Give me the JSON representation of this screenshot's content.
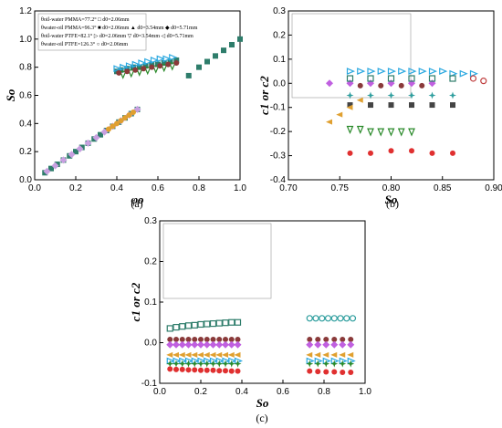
{
  "chart_data": [
    {
      "panel": "(a)",
      "type": "scatter",
      "xlabel": "φo",
      "ylabel": "So",
      "xlim": [
        0.0,
        1.0
      ],
      "ylim": [
        0.0,
        1.2
      ],
      "xticks": [
        "0.0",
        "0.2",
        "0.4",
        "0.6",
        "0.8",
        "1.0"
      ],
      "yticks": [
        "0.0",
        "0.2",
        "0.4",
        "0.6",
        "0.8",
        "1.0",
        "1.2"
      ],
      "legend": [
        "θoil-water PMMA=77.2°  □ d0=2.06mm",
        "θwater-oil PMMA=96.3°  ■ d0=2.06mm  ▲ d0=3.54mm  ◆ d0=5.71mm",
        "θoil-water PTFE=82.1°  ▷ d0=2.06mm  ▽ d0=3.54mm  ◁ d0=5.71mm",
        "θwater-oil PTFE=126.3° ○ d0=2.06mm"
      ],
      "series": [
        {
          "color": "#2e7d6b",
          "marker": "square",
          "x": [
            0.05,
            0.08,
            0.11,
            0.14,
            0.17,
            0.2,
            0.23,
            0.26,
            0.29,
            0.32,
            0.35,
            0.38,
            0.41,
            0.44,
            0.47,
            0.5
          ],
          "y": [
            0.05,
            0.08,
            0.11,
            0.14,
            0.17,
            0.2,
            0.23,
            0.26,
            0.29,
            0.32,
            0.35,
            0.38,
            0.41,
            0.44,
            0.47,
            0.5
          ]
        },
        {
          "color": "#c8a0e0",
          "marker": "diamond",
          "x": [
            0.06,
            0.1,
            0.14,
            0.18,
            0.22,
            0.26,
            0.3,
            0.34,
            0.38,
            0.42,
            0.46,
            0.5
          ],
          "y": [
            0.06,
            0.1,
            0.14,
            0.18,
            0.22,
            0.26,
            0.3,
            0.34,
            0.38,
            0.42,
            0.46,
            0.5
          ]
        },
        {
          "color": "#e0a030",
          "marker": "circle",
          "x": [
            0.36,
            0.38,
            0.4,
            0.42,
            0.44,
            0.46,
            0.48
          ],
          "y": [
            0.36,
            0.38,
            0.4,
            0.42,
            0.44,
            0.46,
            0.48
          ]
        },
        {
          "color": "#2e7d6b",
          "marker": "square",
          "x": [
            0.4,
            0.42,
            0.45,
            0.48,
            0.51,
            0.54,
            0.57,
            0.6,
            0.63,
            0.66,
            0.69
          ],
          "y": [
            0.77,
            0.78,
            0.79,
            0.8,
            0.8,
            0.81,
            0.82,
            0.82,
            0.83,
            0.84,
            0.85
          ]
        },
        {
          "color": "#2aa8e0",
          "marker": "tri-right",
          "x": [
            0.4,
            0.43,
            0.46,
            0.49,
            0.52,
            0.55,
            0.58,
            0.61,
            0.64,
            0.67
          ],
          "y": [
            0.79,
            0.8,
            0.81,
            0.82,
            0.83,
            0.84,
            0.85,
            0.86,
            0.86,
            0.87
          ]
        },
        {
          "color": "#2a8a2a",
          "marker": "tri-down",
          "x": [
            0.43,
            0.47,
            0.51,
            0.55,
            0.59,
            0.63,
            0.67
          ],
          "y": [
            0.75,
            0.76,
            0.77,
            0.78,
            0.79,
            0.8,
            0.81
          ]
        },
        {
          "color": "#8a3a3a",
          "marker": "circle",
          "x": [
            0.41,
            0.45,
            0.49,
            0.53,
            0.57,
            0.61,
            0.65,
            0.69
          ],
          "y": [
            0.76,
            0.77,
            0.78,
            0.79,
            0.8,
            0.81,
            0.82,
            0.83
          ]
        },
        {
          "color": "#2e7d6b",
          "marker": "square",
          "x": [
            0.75,
            0.8,
            0.84,
            0.88,
            0.92,
            0.96,
            1.0
          ],
          "y": [
            0.74,
            0.8,
            0.84,
            0.88,
            0.92,
            0.96,
            1.0
          ]
        }
      ]
    },
    {
      "panel": "(b)",
      "type": "scatter",
      "xlabel": "So",
      "ylabel": "c1 or c2",
      "xlim": [
        0.7,
        0.9
      ],
      "ylim": [
        -0.4,
        0.3
      ],
      "xticks": [
        "0.70",
        "0.75",
        "0.80",
        "0.85",
        "0.90"
      ],
      "yticks": [
        "-0.4",
        "-0.3",
        "-0.2",
        "-0.1",
        "0.0",
        "0.1",
        "0.2",
        "0.3"
      ],
      "series": [
        {
          "color": "#2aa8e0",
          "marker": "tri-right",
          "x": [
            0.76,
            0.77,
            0.78,
            0.79,
            0.8,
            0.81,
            0.82,
            0.83,
            0.84,
            0.85,
            0.86,
            0.87,
            0.88
          ],
          "y": [
            0.05,
            0.05,
            0.05,
            0.05,
            0.05,
            0.05,
            0.05,
            0.05,
            0.05,
            0.05,
            0.04,
            0.04,
            0.04
          ]
        },
        {
          "color": "#c060e0",
          "marker": "diamond",
          "x": [
            0.74,
            0.76,
            0.78,
            0.8,
            0.82,
            0.84
          ],
          "y": [
            0.0,
            0.0,
            0.0,
            0.0,
            0.0,
            0.0
          ]
        },
        {
          "color": "#2e7d6b",
          "marker": "square-open",
          "x": [
            0.76,
            0.78,
            0.8,
            0.82,
            0.84,
            0.86
          ],
          "y": [
            0.02,
            0.02,
            0.02,
            0.02,
            0.02,
            0.02
          ]
        },
        {
          "color": "#c04040",
          "marker": "circle-open",
          "x": [
            0.88,
            0.89
          ],
          "y": [
            0.02,
            0.01
          ]
        },
        {
          "color": "#444444",
          "marker": "square",
          "x": [
            0.76,
            0.78,
            0.8,
            0.82,
            0.84,
            0.86
          ],
          "y": [
            -0.09,
            -0.09,
            -0.09,
            -0.09,
            -0.09,
            -0.09
          ]
        },
        {
          "color": "#2e9e9e",
          "marker": "star",
          "x": [
            0.76,
            0.78,
            0.8,
            0.82,
            0.84,
            0.86
          ],
          "y": [
            -0.05,
            -0.05,
            -0.05,
            -0.05,
            -0.05,
            -0.05
          ]
        },
        {
          "color": "#e0a030",
          "marker": "tri-left",
          "x": [
            0.74,
            0.75,
            0.76,
            0.77
          ],
          "y": [
            -0.16,
            -0.13,
            -0.1,
            -0.07
          ]
        },
        {
          "color": "#2a8a2a",
          "marker": "tri-down",
          "x": [
            0.76,
            0.77,
            0.78,
            0.79,
            0.8,
            0.81,
            0.82
          ],
          "y": [
            -0.19,
            -0.19,
            -0.2,
            -0.2,
            -0.2,
            -0.2,
            -0.2
          ]
        },
        {
          "color": "#e03030",
          "marker": "circle",
          "x": [
            0.76,
            0.78,
            0.8,
            0.82,
            0.84,
            0.86
          ],
          "y": [
            -0.29,
            -0.29,
            -0.28,
            -0.28,
            -0.29,
            -0.29
          ]
        },
        {
          "color": "#8a3a3a",
          "marker": "circle",
          "x": [
            0.77,
            0.79,
            0.81,
            0.83
          ],
          "y": [
            -0.01,
            -0.01,
            -0.01,
            -0.01
          ]
        }
      ]
    },
    {
      "panel": "(c)",
      "type": "scatter",
      "xlabel": "So",
      "ylabel": "c1 or c2",
      "xlim": [
        0.0,
        1.0
      ],
      "ylim": [
        -0.1,
        0.3
      ],
      "xticks": [
        "0.0",
        "0.2",
        "0.4",
        "0.6",
        "0.8",
        "1.0"
      ],
      "yticks": [
        "-0.1",
        "0.0",
        "0.1",
        "0.2",
        "0.3"
      ],
      "series": [
        {
          "color": "#2e7d6b",
          "marker": "square-open",
          "x": [
            0.05,
            0.08,
            0.11,
            0.14,
            0.17,
            0.2,
            0.23,
            0.26,
            0.29,
            0.32,
            0.35,
            0.38
          ],
          "y": [
            0.035,
            0.038,
            0.04,
            0.042,
            0.043,
            0.045,
            0.046,
            0.047,
            0.048,
            0.049,
            0.05,
            0.05
          ]
        },
        {
          "color": "#2e9e9e",
          "marker": "circle-open",
          "x": [
            0.73,
            0.76,
            0.79,
            0.82,
            0.85,
            0.88,
            0.91,
            0.94
          ],
          "y": [
            0.06,
            0.06,
            0.06,
            0.06,
            0.06,
            0.06,
            0.06,
            0.06
          ]
        },
        {
          "color": "#8a3a3a",
          "marker": "circle",
          "x": [
            0.05,
            0.08,
            0.11,
            0.14,
            0.17,
            0.2,
            0.23,
            0.26,
            0.29,
            0.32,
            0.35,
            0.38,
            0.73,
            0.77,
            0.81,
            0.85,
            0.89,
            0.93
          ],
          "y": [
            0.008,
            0.008,
            0.008,
            0.008,
            0.008,
            0.008,
            0.008,
            0.008,
            0.008,
            0.008,
            0.008,
            0.008,
            0.008,
            0.008,
            0.008,
            0.008,
            0.008,
            0.008
          ]
        },
        {
          "color": "#c060e0",
          "marker": "diamond",
          "x": [
            0.05,
            0.08,
            0.11,
            0.14,
            0.17,
            0.2,
            0.23,
            0.26,
            0.29,
            0.32,
            0.35,
            0.38,
            0.73,
            0.77,
            0.81,
            0.85,
            0.89,
            0.93
          ],
          "y": [
            -0.005,
            -0.005,
            -0.005,
            -0.005,
            -0.005,
            -0.005,
            -0.005,
            -0.005,
            -0.005,
            -0.005,
            -0.005,
            -0.005,
            -0.005,
            -0.005,
            -0.005,
            -0.005,
            -0.005,
            -0.005
          ]
        },
        {
          "color": "#e0a030",
          "marker": "tri-left",
          "x": [
            0.05,
            0.08,
            0.11,
            0.14,
            0.17,
            0.2,
            0.23,
            0.26,
            0.29,
            0.32,
            0.35,
            0.38,
            0.73,
            0.77,
            0.81,
            0.85,
            0.89,
            0.93
          ],
          "y": [
            -0.03,
            -0.03,
            -0.03,
            -0.03,
            -0.03,
            -0.03,
            -0.03,
            -0.03,
            -0.03,
            -0.03,
            -0.03,
            -0.03,
            -0.03,
            -0.03,
            -0.03,
            -0.03,
            -0.03,
            -0.03
          ]
        },
        {
          "color": "#2aa8e0",
          "marker": "tri-right",
          "x": [
            0.05,
            0.08,
            0.11,
            0.14,
            0.17,
            0.2,
            0.23,
            0.26,
            0.29,
            0.32,
            0.35,
            0.38,
            0.73,
            0.77,
            0.81,
            0.85,
            0.89,
            0.93
          ],
          "y": [
            -0.045,
            -0.045,
            -0.045,
            -0.045,
            -0.045,
            -0.045,
            -0.045,
            -0.045,
            -0.045,
            -0.045,
            -0.045,
            -0.045,
            -0.045,
            -0.045,
            -0.045,
            -0.045,
            -0.045,
            -0.045
          ]
        },
        {
          "color": "#2a8a2a",
          "marker": "star",
          "x": [
            0.05,
            0.08,
            0.11,
            0.14,
            0.17,
            0.2,
            0.23,
            0.26,
            0.29,
            0.32,
            0.35,
            0.38,
            0.73,
            0.77,
            0.81,
            0.85,
            0.89,
            0.93
          ],
          "y": [
            -0.052,
            -0.052,
            -0.052,
            -0.052,
            -0.052,
            -0.052,
            -0.052,
            -0.052,
            -0.052,
            -0.052,
            -0.052,
            -0.052,
            -0.052,
            -0.052,
            -0.052,
            -0.052,
            -0.052,
            -0.052
          ]
        },
        {
          "color": "#e03030",
          "marker": "circle",
          "x": [
            0.05,
            0.08,
            0.11,
            0.14,
            0.17,
            0.2,
            0.23,
            0.26,
            0.29,
            0.32,
            0.35,
            0.38,
            0.73,
            0.77,
            0.81,
            0.85,
            0.89,
            0.93
          ],
          "y": [
            -0.065,
            -0.066,
            -0.066,
            -0.067,
            -0.067,
            -0.068,
            -0.068,
            -0.068,
            -0.069,
            -0.069,
            -0.07,
            -0.07,
            -0.07,
            -0.071,
            -0.072,
            -0.072,
            -0.073,
            -0.073
          ]
        }
      ]
    }
  ]
}
